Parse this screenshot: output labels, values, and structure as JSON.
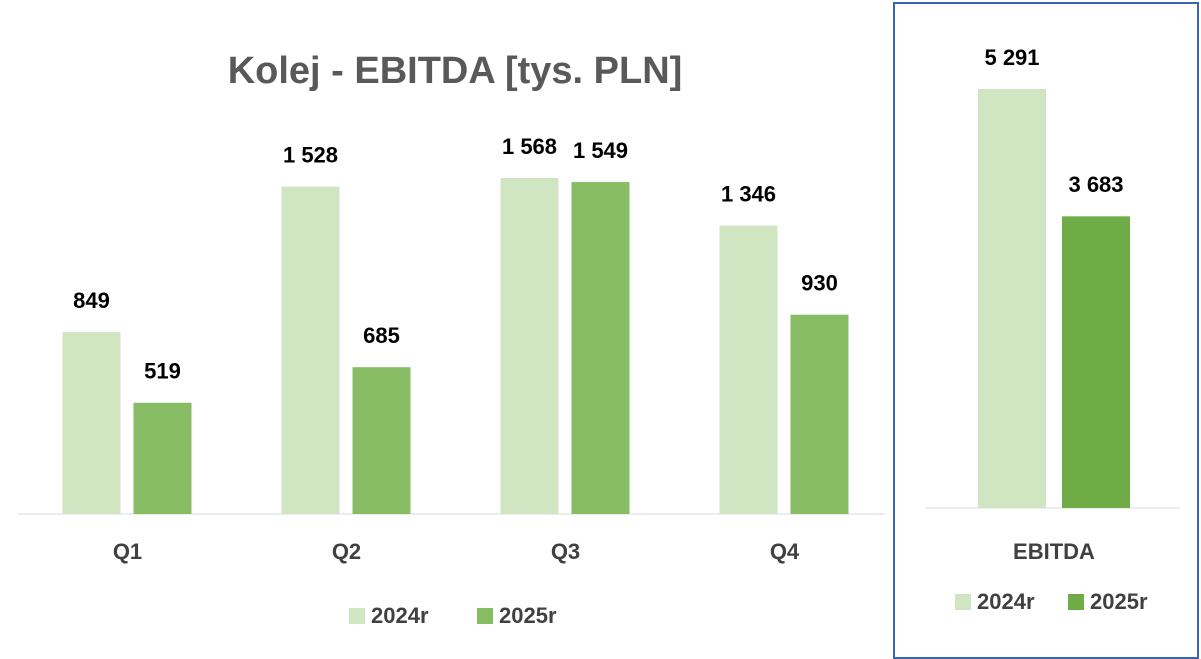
{
  "chart_data": [
    {
      "type": "bar",
      "title": "Kolej - EBITDA [tys. PLN]",
      "categories": [
        "Q1",
        "Q2",
        "Q3",
        "Q4"
      ],
      "series": [
        {
          "name": "2024r",
          "color": "#d0e6c3",
          "values": [
            849,
            1528,
            1568,
            1346
          ],
          "value_labels": [
            "849",
            "1 528",
            "1 568",
            "1 346"
          ]
        },
        {
          "name": "2025r",
          "color": "#87bb64",
          "values": [
            519,
            685,
            1549,
            930
          ],
          "value_labels": [
            "519",
            "685",
            "1 549",
            "930"
          ]
        }
      ],
      "legend": "bottom"
    },
    {
      "type": "bar",
      "categories": [
        "EBITDA"
      ],
      "series": [
        {
          "name": "2024r",
          "color": "#d0e6c3",
          "values": [
            5291
          ],
          "value_labels": [
            "5 291"
          ]
        },
        {
          "name": "2025r",
          "color": "#6fac46",
          "values": [
            3683
          ],
          "value_labels": [
            "3 683"
          ]
        }
      ],
      "legend": "bottom"
    }
  ]
}
